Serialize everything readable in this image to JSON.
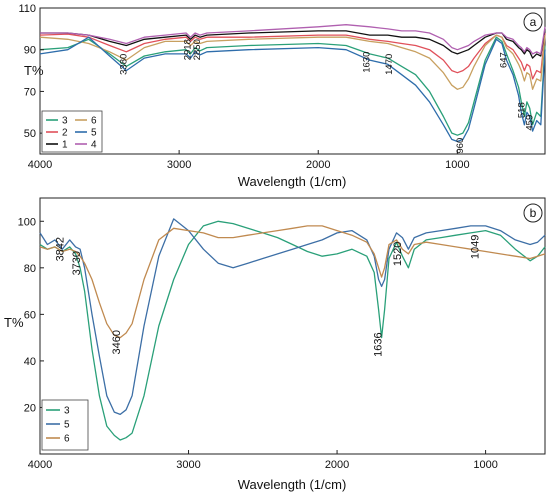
{
  "chart_data": [
    {
      "type": "line",
      "panel_label": "a",
      "xlabel": "Wavelength (1/cm)",
      "ylabel": "T%",
      "xlim": [
        4000,
        370
      ],
      "ylim": [
        40,
        110
      ],
      "xticks": [
        4000,
        3000,
        2000,
        1000
      ],
      "yticks": [
        50,
        70,
        90,
        110
      ],
      "grid": false,
      "legend": "bottom-left",
      "legend_columns": [
        [
          "3",
          "2",
          "1"
        ],
        [
          "6",
          "5",
          "4"
        ]
      ],
      "annotations": [
        {
          "text": "3380",
          "x": 3380,
          "y": 83
        },
        {
          "text": "2918",
          "x": 2918,
          "y": 90
        },
        {
          "text": "2850",
          "x": 2850,
          "y": 90
        },
        {
          "text": "1630",
          "x": 1630,
          "y": 84
        },
        {
          "text": "1470",
          "x": 1470,
          "y": 83
        },
        {
          "text": "960",
          "x": 960,
          "y": 44
        },
        {
          "text": "647",
          "x": 647,
          "y": 85
        },
        {
          "text": "518",
          "x": 518,
          "y": 61
        },
        {
          "text": "459",
          "x": 459,
          "y": 55
        }
      ],
      "series": [
        {
          "name": "3",
          "color": "#2aa079",
          "x": [
            4000,
            3800,
            3650,
            3500,
            3380,
            3250,
            3100,
            2950,
            2918,
            2885,
            2850,
            2800,
            2500,
            2000,
            1800,
            1630,
            1500,
            1400,
            1300,
            1200,
            1100,
            1040,
            1000,
            960,
            920,
            880,
            800,
            720,
            680,
            647,
            600,
            560,
            540,
            518,
            500,
            480,
            459,
            430,
            400,
            370
          ],
          "y": [
            90,
            91,
            95,
            88,
            82,
            87,
            89,
            90,
            88,
            91,
            89.5,
            91,
            92,
            93,
            92,
            88,
            86,
            82,
            78,
            70,
            58,
            50,
            49,
            50,
            55,
            65,
            85,
            96,
            94,
            88,
            80,
            72,
            65,
            58,
            65,
            62,
            54,
            60,
            58,
            92
          ]
        },
        {
          "name": "2",
          "color": "#e0505a",
          "x": [
            4000,
            3800,
            3650,
            3500,
            3380,
            3250,
            3100,
            2950,
            2918,
            2885,
            2850,
            2800,
            2500,
            2000,
            1800,
            1630,
            1500,
            1400,
            1300,
            1200,
            1100,
            1040,
            1000,
            960,
            920,
            880,
            800,
            720,
            680,
            647,
            600,
            560,
            540,
            518,
            500,
            480,
            459,
            430,
            400,
            370
          ],
          "y": [
            97,
            97.5,
            96,
            92,
            89,
            93,
            95,
            96,
            94,
            96,
            95,
            96,
            96,
            97,
            97,
            95,
            94,
            93,
            92,
            90,
            85,
            80,
            79,
            80,
            82,
            86,
            93,
            97,
            96,
            92,
            90,
            86,
            84,
            80,
            83,
            82,
            76,
            80,
            79,
            98
          ]
        },
        {
          "name": "1",
          "color": "#111111",
          "x": [
            4000,
            3800,
            3650,
            3500,
            3380,
            3250,
            3100,
            2950,
            2918,
            2885,
            2850,
            2800,
            2500,
            2000,
            1800,
            1630,
            1500,
            1400,
            1300,
            1200,
            1100,
            1040,
            1000,
            960,
            920,
            880,
            800,
            720,
            680,
            647,
            600,
            560,
            540,
            518,
            500,
            480,
            459,
            430,
            400,
            370
          ],
          "y": [
            98,
            98,
            97,
            94,
            92,
            95,
            96,
            97,
            95,
            97,
            96,
            97,
            98,
            99,
            99,
            97,
            97,
            96,
            96,
            95,
            92,
            89,
            88,
            89,
            90,
            92,
            96,
            98,
            98,
            95,
            94,
            91,
            90,
            88,
            90,
            89,
            86,
            88,
            87,
            100
          ]
        },
        {
          "name": "6",
          "color": "#c8a060",
          "x": [
            4000,
            3800,
            3650,
            3500,
            3380,
            3250,
            3100,
            2950,
            2918,
            2885,
            2850,
            2800,
            2500,
            2000,
            1800,
            1630,
            1500,
            1400,
            1300,
            1200,
            1100,
            1040,
            1000,
            960,
            920,
            880,
            800,
            720,
            680,
            647,
            600,
            560,
            540,
            518,
            500,
            480,
            459,
            430,
            400,
            370
          ],
          "y": [
            96,
            95,
            93,
            89,
            85,
            91,
            94,
            94,
            92,
            94,
            93,
            94,
            95,
            96,
            96,
            94,
            93,
            91,
            89,
            86,
            79,
            73,
            71,
            72,
            76,
            82,
            92,
            97,
            96,
            91,
            88,
            83,
            80,
            75,
            79,
            78,
            71,
            76,
            75,
            97
          ]
        },
        {
          "name": "5",
          "color": "#2e6dab",
          "x": [
            4000,
            3800,
            3650,
            3500,
            3380,
            3250,
            3100,
            2950,
            2918,
            2885,
            2850,
            2800,
            2500,
            2000,
            1800,
            1630,
            1500,
            1400,
            1300,
            1200,
            1100,
            1040,
            1000,
            960,
            920,
            880,
            800,
            720,
            680,
            647,
            600,
            560,
            540,
            518,
            500,
            480,
            459,
            430,
            400,
            370
          ],
          "y": [
            88,
            90,
            96,
            87,
            80,
            86,
            88,
            88,
            86,
            89,
            87.5,
            89,
            90,
            91,
            90,
            85,
            83,
            78,
            73,
            65,
            54,
            47,
            46,
            47,
            52,
            62,
            83,
            95,
            93,
            85,
            78,
            68,
            60,
            54,
            60,
            58,
            51,
            56,
            54,
            90
          ]
        },
        {
          "name": "4",
          "color": "#b060b0",
          "x": [
            4000,
            3800,
            3650,
            3500,
            3380,
            3250,
            3100,
            2950,
            2918,
            2885,
            2850,
            2800,
            2500,
            2000,
            1800,
            1630,
            1500,
            1400,
            1300,
            1200,
            1100,
            1040,
            1000,
            960,
            920,
            880,
            800,
            720,
            680,
            647,
            600,
            560,
            540,
            518,
            500,
            480,
            459,
            430,
            400,
            370
          ],
          "y": [
            98,
            98,
            97,
            95,
            93,
            96,
            97,
            98,
            96,
            98,
            97,
            98,
            99,
            101,
            102,
            101,
            100,
            99,
            99,
            98,
            95,
            91,
            90,
            91,
            92,
            94,
            97,
            98,
            98,
            96,
            95,
            92,
            91,
            89,
            91,
            90,
            88,
            89,
            88,
            101
          ]
        }
      ]
    },
    {
      "type": "line",
      "panel_label": "b",
      "xlabel": "Wavelength (1/cm)",
      "ylabel": "T%",
      "xlim": [
        4000,
        600
      ],
      "ylim": [
        0,
        110
      ],
      "xticks": [
        4000,
        3000,
        2000,
        1000
      ],
      "yticks": [
        20,
        40,
        60,
        80,
        100
      ],
      "grid": false,
      "legend": "bottom-left",
      "annotations": [
        {
          "text": "3842",
          "x": 3842,
          "y": 88
        },
        {
          "text": "3730",
          "x": 3730,
          "y": 82
        },
        {
          "text": "3460",
          "x": 3460,
          "y": 48
        },
        {
          "text": "1636",
          "x": 1700,
          "y": 47
        },
        {
          "text": "1520",
          "x": 1570,
          "y": 86
        },
        {
          "text": "1049",
          "x": 1049,
          "y": 89
        }
      ],
      "series": [
        {
          "name": "3",
          "color": "#2aa079",
          "x": [
            4000,
            3950,
            3900,
            3850,
            3800,
            3760,
            3730,
            3700,
            3650,
            3600,
            3550,
            3500,
            3460,
            3420,
            3380,
            3300,
            3200,
            3100,
            3000,
            2900,
            2800,
            2700,
            2600,
            2500,
            2400,
            2300,
            2200,
            2100,
            2000,
            1900,
            1800,
            1750,
            1720,
            1700,
            1680,
            1650,
            1600,
            1560,
            1520,
            1480,
            1400,
            1300,
            1200,
            1100,
            1000,
            900,
            800,
            700,
            650,
            600
          ],
          "y": [
            90,
            88,
            89,
            87,
            89,
            86,
            80,
            70,
            45,
            25,
            12,
            8,
            6,
            7,
            9,
            25,
            55,
            75,
            90,
            98,
            100,
            99,
            97,
            95,
            93,
            90,
            87,
            85,
            86,
            88,
            85,
            78,
            62,
            50,
            62,
            84,
            91,
            85,
            80,
            88,
            92,
            93,
            94,
            95,
            96,
            94,
            88,
            83,
            85,
            89
          ]
        },
        {
          "name": "5",
          "color": "#3d6fa6",
          "x": [
            4000,
            3950,
            3900,
            3850,
            3800,
            3760,
            3730,
            3700,
            3650,
            3600,
            3550,
            3500,
            3460,
            3420,
            3380,
            3300,
            3200,
            3100,
            3000,
            2900,
            2800,
            2700,
            2600,
            2500,
            2400,
            2300,
            2200,
            2100,
            2000,
            1900,
            1800,
            1750,
            1720,
            1700,
            1680,
            1650,
            1600,
            1560,
            1520,
            1480,
            1400,
            1300,
            1200,
            1100,
            1000,
            900,
            800,
            700,
            650,
            600
          ],
          "y": [
            95,
            90,
            92,
            88,
            92,
            89,
            88,
            80,
            60,
            42,
            25,
            18,
            17,
            19,
            25,
            55,
            85,
            101,
            96,
            88,
            82,
            80,
            82,
            84,
            86,
            88,
            90,
            92,
            95,
            96,
            92,
            85,
            75,
            72,
            75,
            88,
            95,
            93,
            88,
            93,
            95,
            96,
            97,
            98,
            98,
            96,
            92,
            90,
            91,
            94
          ]
        },
        {
          "name": "6",
          "color": "#c08a50",
          "x": [
            4000,
            3950,
            3900,
            3850,
            3800,
            3760,
            3730,
            3700,
            3650,
            3600,
            3550,
            3500,
            3460,
            3420,
            3380,
            3300,
            3200,
            3100,
            3000,
            2900,
            2800,
            2700,
            2600,
            2500,
            2400,
            2300,
            2200,
            2100,
            2000,
            1900,
            1800,
            1750,
            1720,
            1700,
            1680,
            1650,
            1600,
            1560,
            1520,
            1480,
            1400,
            1300,
            1200,
            1100,
            1000,
            900,
            800,
            700,
            650,
            600
          ],
          "y": [
            89,
            88,
            89,
            87,
            88,
            87,
            85,
            82,
            75,
            65,
            56,
            51,
            50,
            52,
            56,
            75,
            92,
            97,
            96,
            95,
            93,
            93,
            94,
            95,
            96,
            97,
            98,
            98,
            96,
            94,
            91,
            86,
            80,
            76,
            80,
            90,
            92,
            88,
            86,
            90,
            91,
            90,
            89,
            88,
            87,
            86,
            85,
            84,
            85,
            86
          ]
        }
      ]
    }
  ]
}
